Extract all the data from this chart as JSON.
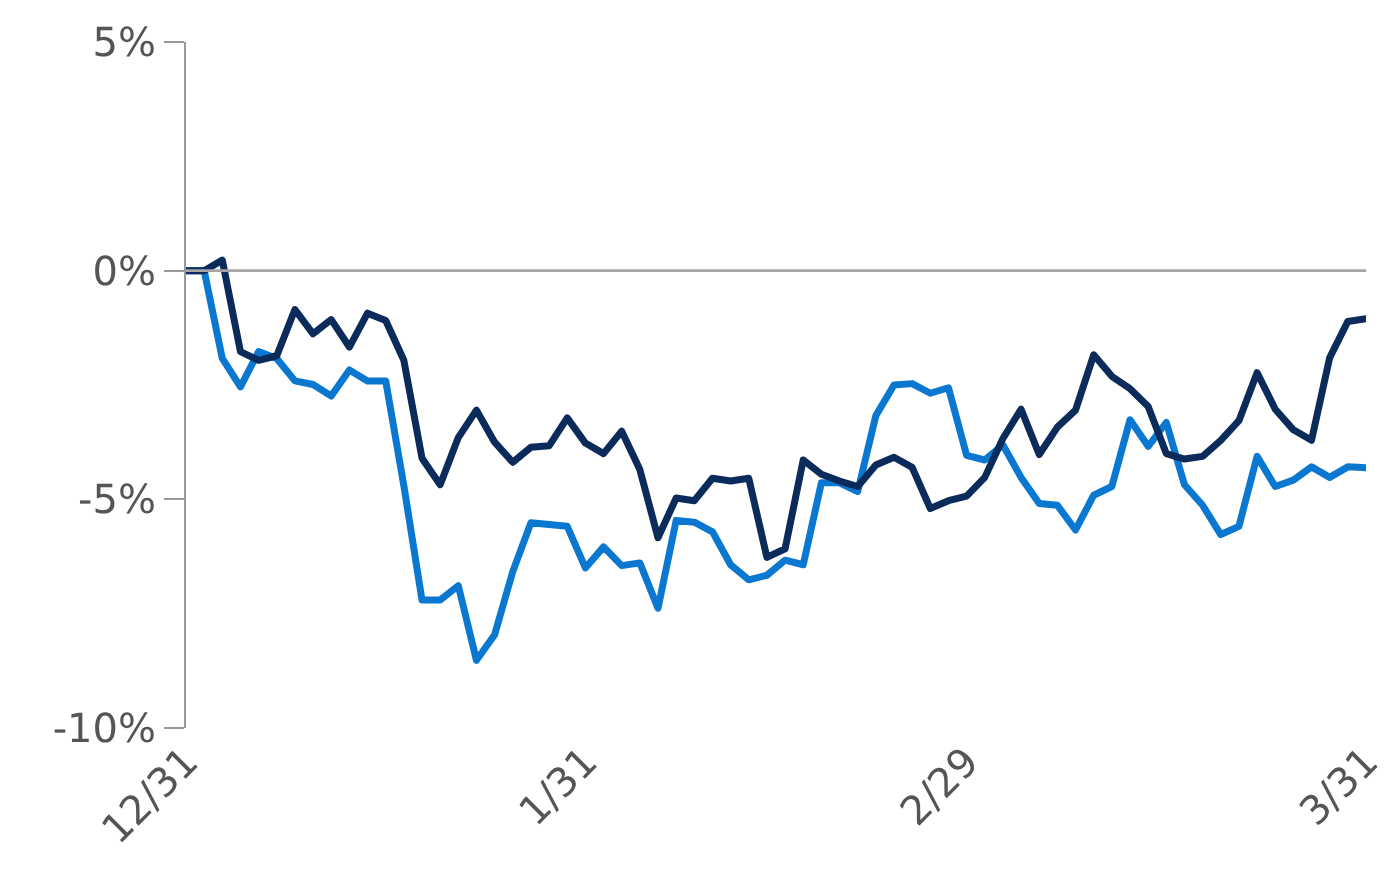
{
  "chart_data": {
    "type": "line",
    "ylim": [
      -10,
      5
    ],
    "categories": [
      "12/31",
      null,
      null,
      null,
      null,
      null,
      null,
      null,
      null,
      null,
      null,
      null,
      null,
      null,
      null,
      null,
      null,
      null,
      null,
      null,
      null,
      null,
      "1/31",
      null,
      null,
      null,
      null,
      null,
      null,
      null,
      null,
      null,
      null,
      null,
      null,
      null,
      null,
      null,
      null,
      null,
      null,
      null,
      null,
      "2/29",
      null,
      null,
      null,
      null,
      null,
      null,
      null,
      null,
      null,
      null,
      null,
      null,
      null,
      null,
      null,
      null,
      null,
      null,
      null,
      null,
      null,
      "3/31"
    ],
    "yticks": [
      {
        "value": 5,
        "label": "5%"
      },
      {
        "value": 0,
        "label": "0%"
      },
      {
        "value": -5,
        "label": "-5%"
      },
      {
        "value": -10,
        "label": "-10%"
      }
    ],
    "grid": false,
    "marker": "none",
    "line_style": "solid",
    "ref_lines": [
      {
        "axis": "y",
        "value": 0,
        "color": "#a6a6a6"
      }
    ],
    "series": [
      {
        "color": "#0a78d1",
        "values": [
          0,
          0,
          -1.92,
          -2.54,
          -1.77,
          -1.92,
          -2.41,
          -2.49,
          -2.74,
          -2.17,
          -2.41,
          -2.41,
          -4.7,
          -7.2,
          -7.2,
          -6.89,
          -8.52,
          -7.96,
          -6.58,
          -5.51,
          -5.55,
          -5.59,
          -6.5,
          -6.04,
          -6.45,
          -6.39,
          -7.38,
          -5.46,
          -5.5,
          -5.71,
          -6.43,
          -6.76,
          -6.66,
          -6.33,
          -6.43,
          -4.64,
          -4.64,
          -4.83,
          -3.17,
          -2.5,
          -2.47,
          -2.68,
          -2.56,
          -4.04,
          -4.14,
          -3.81,
          -4.52,
          -5.09,
          -5.13,
          -5.67,
          -4.91,
          -4.72,
          -3.26,
          -3.84,
          -3.32,
          -4.68,
          -5.13,
          -5.77,
          -5.59,
          -4.06,
          -4.72,
          -4.58,
          -4.29,
          -4.52,
          -4.29,
          -4.31
        ]
      },
      {
        "color": "#0b2c5a",
        "values": [
          0,
          0,
          0.23,
          -1.77,
          -1.96,
          -1.86,
          -0.85,
          -1.38,
          -1.07,
          -1.67,
          -0.93,
          -1.09,
          -1.96,
          -4.1,
          -4.68,
          -3.65,
          -3.05,
          -3.75,
          -4.19,
          -3.86,
          -3.83,
          -3.22,
          -3.77,
          -4,
          -3.51,
          -4.35,
          -5.84,
          -4.97,
          -5.03,
          -4.54,
          -4.6,
          -4.54,
          -6.27,
          -6.08,
          -4.14,
          -4.45,
          -4.6,
          -4.72,
          -4.25,
          -4.08,
          -4.3,
          -5.2,
          -5.03,
          -4.93,
          -4.52,
          -3.67,
          -3.03,
          -4.02,
          -3.42,
          -3.05,
          -1.84,
          -2.31,
          -2.58,
          -2.97,
          -4,
          -4.12,
          -4.06,
          -3.71,
          -3.28,
          -2.23,
          -3.03,
          -3.48,
          -3.71,
          -1.9,
          -1.11,
          -1.05
        ]
      }
    ]
  }
}
